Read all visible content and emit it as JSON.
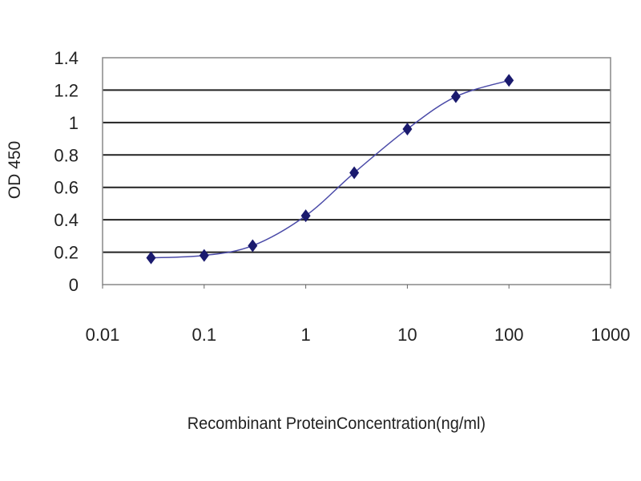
{
  "chart_data": {
    "type": "line",
    "title": "",
    "xlabel": "Recombinant ProteinConcentration(ng/ml)",
    "ylabel": "OD 450",
    "x_scale": "log",
    "xlim": [
      0.01,
      1000
    ],
    "ylim": [
      0,
      1.4
    ],
    "x_ticks": [
      "0.01",
      "0.1",
      "1",
      "10",
      "100",
      "1000"
    ],
    "y_ticks": [
      "0",
      "0.2",
      "0.4",
      "0.6",
      "0.8",
      "1",
      "1.2",
      "1.4"
    ],
    "grid": "horizontal",
    "legend": "none",
    "series": [
      {
        "color": "#1a1a6e",
        "marker": "diamond",
        "x": [
          0.03,
          0.1,
          0.3,
          1,
          3,
          10,
          30,
          100
        ],
        "y": [
          0.165,
          0.18,
          0.24,
          0.425,
          0.69,
          0.96,
          1.16,
          1.26
        ]
      }
    ]
  }
}
